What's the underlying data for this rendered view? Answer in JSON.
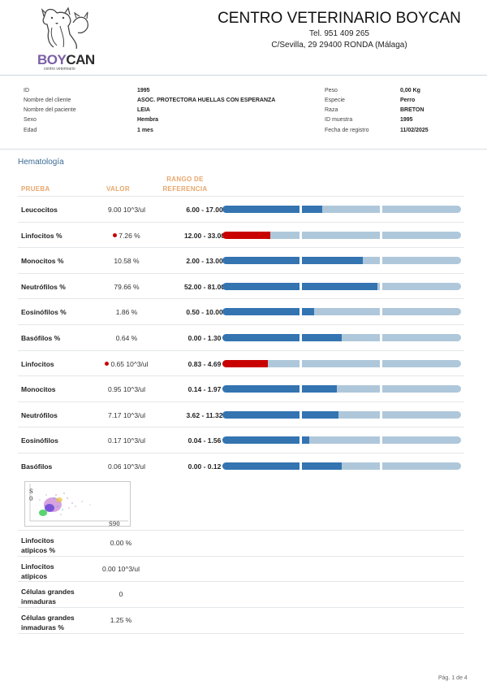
{
  "header": {
    "logo_text_1": "BOY",
    "logo_text_2": "CAN",
    "logo_subtitle": "centro veterinario",
    "clinic_name": "CENTRO VETERINARIO BOYCAN",
    "phone": "Tel. 951 409 265",
    "address": "C/Sevilla, 29  29400 RONDA (Málaga)"
  },
  "patient": {
    "left": [
      {
        "label": "ID",
        "value": "1995"
      },
      {
        "label": "Nombre del cliente",
        "value": "ASOC. PROTECTORA HUELLAS CON ESPERANZA"
      },
      {
        "label": "Nombre del paciente",
        "value": "LEIA"
      },
      {
        "label": "Sexo",
        "value": "Hembra"
      },
      {
        "label": "Edad",
        "value": "1 mes"
      }
    ],
    "right": [
      {
        "label": "Peso",
        "value": "0,00 Kg"
      },
      {
        "label": "Especie",
        "value": "Perro"
      },
      {
        "label": "Raza",
        "value": "BRETON"
      },
      {
        "label": "ID muestra",
        "value": "1995"
      },
      {
        "label": "Fecha de registro",
        "value": "11/02/2025"
      }
    ]
  },
  "section": {
    "title": "Hematología"
  },
  "columns": {
    "test": "PRUEBA",
    "value": "VALOR",
    "range_line1": "RANGO DE",
    "range_line2": "REFERENCIA"
  },
  "results": [
    {
      "name": "Leucocitos",
      "value": "9.00 10^3/ul",
      "range": "6.00 - 17.00",
      "flag": false,
      "level": 0.42
    },
    {
      "name": "Linfocitos %",
      "value": "7.26 %",
      "range": "12.00 - 33.00",
      "flag": true,
      "level": 0.2
    },
    {
      "name": "Monocitos %",
      "value": "10.58 %",
      "range": "2.00 - 13.00",
      "flag": false,
      "level": 0.59
    },
    {
      "name": "Neutrófilos %",
      "value": "79.66 %",
      "range": "52.00 - 81.00",
      "flag": false,
      "level": 0.65
    },
    {
      "name": "Eosinófilos %",
      "value": "1.86 %",
      "range": "0.50 - 10.00",
      "flag": false,
      "level": 0.385
    },
    {
      "name": "Basófilos %",
      "value": "0.64 %",
      "range": "0.00 - 1.30",
      "flag": false,
      "level": 0.5
    },
    {
      "name": "Linfocitos",
      "value": "0.65 10^3/ul",
      "range": "0.83 - 4.69",
      "flag": true,
      "level": 0.19
    },
    {
      "name": "Monocitos",
      "value": "0.95 10^3/ul",
      "range": "0.14 - 1.97",
      "flag": false,
      "level": 0.48
    },
    {
      "name": "Neutrófilos",
      "value": "7.17 10^3/ul",
      "range": "3.62 - 11.32",
      "flag": false,
      "level": 0.485
    },
    {
      "name": "Eosinófilos",
      "value": "0.17 10^3/ul",
      "range": "0.04 - 1.56",
      "flag": false,
      "level": 0.365
    },
    {
      "name": "Basófilos",
      "value": "0.06 10^3/ul",
      "range": "0.00 - 0.12",
      "flag": false,
      "level": 0.5
    }
  ],
  "scatter": {
    "ylabel_1": "S",
    "ylabel_2": "0",
    "xlabel": "S90"
  },
  "extra_results": [
    {
      "name_1": "Linfocitos",
      "name_2": "atípicos %",
      "value": "0.00 %"
    },
    {
      "name_1": "Linfocitos",
      "name_2": "atípicos",
      "value": "0.00 10^3/ul"
    },
    {
      "name_1": "Células grandes",
      "name_2": "inmaduras",
      "value": "0"
    },
    {
      "name_1": "Células grandes",
      "name_2": "inmaduras %",
      "value": "1.25 %"
    }
  ],
  "footer": {
    "page": "Pág. 1 de 4"
  },
  "colors": {
    "accent_heading": "#e8a66b",
    "bar_fill": "#3474b1",
    "bar_track": "#afc7da",
    "flag": "#c90000",
    "section": "#3a6a94"
  }
}
